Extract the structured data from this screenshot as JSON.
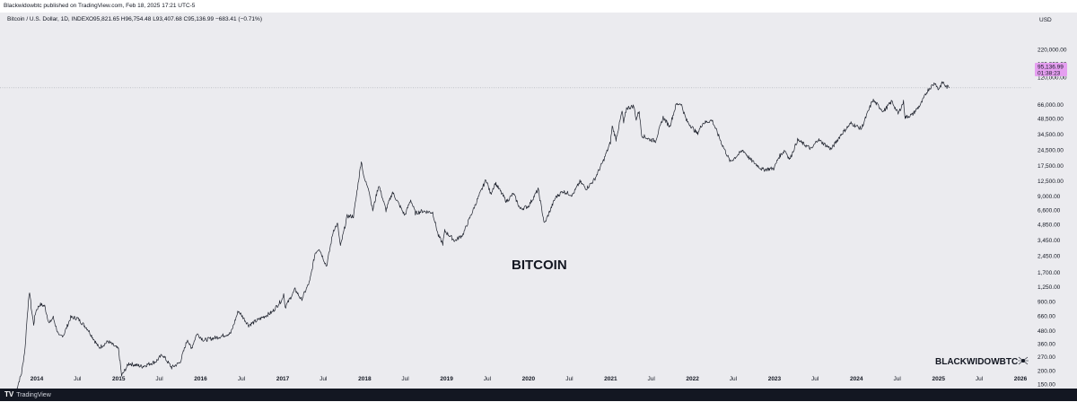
{
  "header": {
    "publisher_line": "Blackwidowbtc published on TradingView.com, Feb 18, 2025 17:21 UTC-5"
  },
  "legend": {
    "symbol": "Bitcoin / U.S. Dollar, 1D, INDEX",
    "ohlc": "O95,821.65  H96,754.48  L93,407.68  C95,136.99  −683.41 (−0.71%)"
  },
  "price_label": {
    "price": "95,136.99",
    "countdown": "01:38:23",
    "color": "#e59ff0"
  },
  "currency": "USD",
  "watermark": {
    "center": "BITCOIN",
    "corner": "BLACKWIDOWBTC"
  },
  "footer": {
    "brand": "TradingView"
  },
  "colors": {
    "background": "#ebebef",
    "line": "#1e222d",
    "price_tag": "#e59ff0"
  },
  "chart_data": {
    "type": "line",
    "scale": "log",
    "title": "Bitcoin / U.S. Dollar, 1D, INDEX",
    "y_ticks": [
      150,
      200,
      270,
      360,
      480,
      660,
      900,
      1250,
      1700,
      2450,
      3450,
      4850,
      6600,
      9000,
      12500,
      17500,
      24500,
      34500,
      48500,
      66000,
      120000,
      160000,
      220000
    ],
    "y_tick_labels": [
      "150.00",
      "200.00",
      "270.00",
      "360.00",
      "480.00",
      "660.00",
      "900.00",
      "1,250.00",
      "1,700.00",
      "2,450.00",
      "3,450.00",
      "4,850.00",
      "6,600.00",
      "9,000.00",
      "12,500.00",
      "17,500.00",
      "24,500.00",
      "34,500.00",
      "48,500.00",
      "66,000.00",
      "120,000.00",
      "160,000.00",
      "220,000.00"
    ],
    "x_labels": [
      {
        "date": "2014-01-01",
        "label": "2014"
      },
      {
        "date": "2014-07-01",
        "label": "Jul"
      },
      {
        "date": "2015-01-01",
        "label": "2015"
      },
      {
        "date": "2015-07-01",
        "label": "Jul"
      },
      {
        "date": "2016-01-01",
        "label": "2016"
      },
      {
        "date": "2016-07-01",
        "label": "Jul"
      },
      {
        "date": "2017-01-01",
        "label": "2017"
      },
      {
        "date": "2017-07-01",
        "label": "Jul"
      },
      {
        "date": "2018-01-01",
        "label": "2018"
      },
      {
        "date": "2018-07-01",
        "label": "Jul"
      },
      {
        "date": "2019-01-01",
        "label": "2019"
      },
      {
        "date": "2019-07-01",
        "label": "Jul"
      },
      {
        "date": "2020-01-01",
        "label": "2020"
      },
      {
        "date": "2020-07-01",
        "label": "Jul"
      },
      {
        "date": "2021-01-01",
        "label": "2021"
      },
      {
        "date": "2021-07-01",
        "label": "Jul"
      },
      {
        "date": "2022-01-01",
        "label": "2022"
      },
      {
        "date": "2022-07-01",
        "label": "Jul"
      },
      {
        "date": "2023-01-01",
        "label": "2023"
      },
      {
        "date": "2023-07-01",
        "label": "Jul"
      },
      {
        "date": "2024-01-01",
        "label": "2024"
      },
      {
        "date": "2024-07-01",
        "label": "Jul"
      },
      {
        "date": "2025-01-01",
        "label": "2025"
      },
      {
        "date": "2025-07-01",
        "label": "Jul"
      },
      {
        "date": "2026-01-01",
        "label": "2026"
      }
    ],
    "last_price": 95136.99,
    "series": [
      {
        "points": [
          [
            "2013-10-01",
            130
          ],
          [
            "2013-10-25",
            190
          ],
          [
            "2013-11-10",
            330
          ],
          [
            "2013-11-20",
            700
          ],
          [
            "2013-11-30",
            1130
          ],
          [
            "2013-12-07",
            800
          ],
          [
            "2013-12-18",
            550
          ],
          [
            "2013-12-28",
            740
          ],
          [
            "2014-01-15",
            850
          ],
          [
            "2014-02-05",
            820
          ],
          [
            "2014-02-25",
            560
          ],
          [
            "2014-03-15",
            640
          ],
          [
            "2014-04-10",
            420
          ],
          [
            "2014-05-01",
            440
          ],
          [
            "2014-06-01",
            640
          ],
          [
            "2014-07-01",
            630
          ],
          [
            "2014-08-15",
            500
          ],
          [
            "2014-10-05",
            330
          ],
          [
            "2014-11-15",
            380
          ],
          [
            "2014-12-31",
            320
          ],
          [
            "2015-01-14",
            180
          ],
          [
            "2015-02-15",
            235
          ],
          [
            "2015-04-15",
            220
          ],
          [
            "2015-06-15",
            245
          ],
          [
            "2015-07-15",
            285
          ],
          [
            "2015-08-25",
            215
          ],
          [
            "2015-10-01",
            240
          ],
          [
            "2015-11-04",
            400
          ],
          [
            "2015-11-20",
            320
          ],
          [
            "2015-12-15",
            450
          ],
          [
            "2016-01-15",
            390
          ],
          [
            "2016-03-15",
            415
          ],
          [
            "2016-05-15",
            455
          ],
          [
            "2016-06-17",
            740
          ],
          [
            "2016-08-02",
            540
          ],
          [
            "2016-09-15",
            610
          ],
          [
            "2016-11-15",
            720
          ],
          [
            "2016-12-31",
            960
          ],
          [
            "2017-01-05",
            1100
          ],
          [
            "2017-01-12",
            800
          ],
          [
            "2017-02-25",
            1180
          ],
          [
            "2017-03-25",
            940
          ],
          [
            "2017-05-01",
            1400
          ],
          [
            "2017-05-25",
            2600
          ],
          [
            "2017-06-12",
            2900
          ],
          [
            "2017-07-15",
            1950
          ],
          [
            "2017-08-15",
            4300
          ],
          [
            "2017-09-02",
            4900
          ],
          [
            "2017-09-15",
            3000
          ],
          [
            "2017-10-15",
            5800
          ],
          [
            "2017-11-12",
            5800
          ],
          [
            "2017-11-28",
            10000
          ],
          [
            "2017-12-17",
            19500
          ],
          [
            "2017-12-30",
            13000
          ],
          [
            "2018-01-17",
            11000
          ],
          [
            "2018-02-06",
            6600
          ],
          [
            "2018-03-05",
            11500
          ],
          [
            "2018-04-06",
            6600
          ],
          [
            "2018-05-05",
            9800
          ],
          [
            "2018-06-29",
            5900
          ],
          [
            "2018-07-25",
            8300
          ],
          [
            "2018-08-15",
            6200
          ],
          [
            "2018-09-15",
            6500
          ],
          [
            "2018-10-31",
            6300
          ],
          [
            "2018-11-25",
            3800
          ],
          [
            "2018-12-15",
            3200
          ],
          [
            "2018-12-24",
            4200
          ],
          [
            "2019-02-07",
            3400
          ],
          [
            "2019-03-15",
            3900
          ],
          [
            "2019-04-05",
            5000
          ],
          [
            "2019-05-15",
            8000
          ],
          [
            "2019-06-26",
            13000
          ],
          [
            "2019-07-16",
            9400
          ],
          [
            "2019-08-06",
            12000
          ],
          [
            "2019-09-25",
            8000
          ],
          [
            "2019-10-26",
            9500
          ],
          [
            "2019-11-25",
            6800
          ],
          [
            "2019-12-31",
            7200
          ],
          [
            "2020-02-13",
            10400
          ],
          [
            "2020-03-12",
            4900
          ],
          [
            "2020-04-30",
            8700
          ],
          [
            "2020-06-01",
            10000
          ],
          [
            "2020-07-15",
            9200
          ],
          [
            "2020-08-17",
            12300
          ],
          [
            "2020-09-15",
            10600
          ],
          [
            "2020-10-21",
            12900
          ],
          [
            "2020-11-30",
            19500
          ],
          [
            "2020-12-31",
            29000
          ],
          [
            "2021-01-08",
            41000
          ],
          [
            "2021-01-25",
            31000
          ],
          [
            "2021-02-21",
            57000
          ],
          [
            "2021-02-28",
            44000
          ],
          [
            "2021-03-13",
            61000
          ],
          [
            "2021-04-14",
            64000
          ],
          [
            "2021-04-25",
            48000
          ],
          [
            "2021-05-08",
            58000
          ],
          [
            "2021-05-19",
            34000
          ],
          [
            "2021-06-22",
            31000
          ],
          [
            "2021-07-20",
            30000
          ],
          [
            "2021-08-23",
            50000
          ],
          [
            "2021-09-21",
            41000
          ],
          [
            "2021-10-20",
            66000
          ],
          [
            "2021-11-10",
            68000
          ],
          [
            "2021-12-04",
            47000
          ],
          [
            "2022-01-22",
            35000
          ],
          [
            "2022-02-15",
            44000
          ],
          [
            "2022-03-29",
            47000
          ],
          [
            "2022-05-12",
            28000
          ],
          [
            "2022-06-18",
            19000
          ],
          [
            "2022-08-14",
            24500
          ],
          [
            "2022-09-15",
            20000
          ],
          [
            "2022-11-09",
            16000
          ],
          [
            "2022-12-30",
            16500
          ],
          [
            "2023-01-20",
            21000
          ],
          [
            "2023-02-16",
            24500
          ],
          [
            "2023-03-10",
            20000
          ],
          [
            "2023-04-14",
            30500
          ],
          [
            "2023-06-15",
            25000
          ],
          [
            "2023-07-13",
            31000
          ],
          [
            "2023-09-11",
            25000
          ],
          [
            "2023-10-25",
            34500
          ],
          [
            "2023-12-08",
            44000
          ],
          [
            "2024-01-23",
            39000
          ],
          [
            "2024-03-14",
            73000
          ],
          [
            "2024-05-01",
            57000
          ],
          [
            "2024-06-07",
            71000
          ],
          [
            "2024-07-05",
            54000
          ],
          [
            "2024-07-29",
            70000
          ],
          [
            "2024-08-05",
            50000
          ],
          [
            "2024-09-06",
            53000
          ],
          [
            "2024-10-15",
            67000
          ],
          [
            "2024-11-13",
            90000
          ],
          [
            "2024-12-17",
            107000
          ],
          [
            "2024-12-30",
            92000
          ],
          [
            "2025-01-21",
            108000
          ],
          [
            "2025-02-03",
            97000
          ],
          [
            "2025-02-10",
            97000
          ],
          [
            "2025-02-18",
            95137
          ]
        ]
      }
    ]
  }
}
